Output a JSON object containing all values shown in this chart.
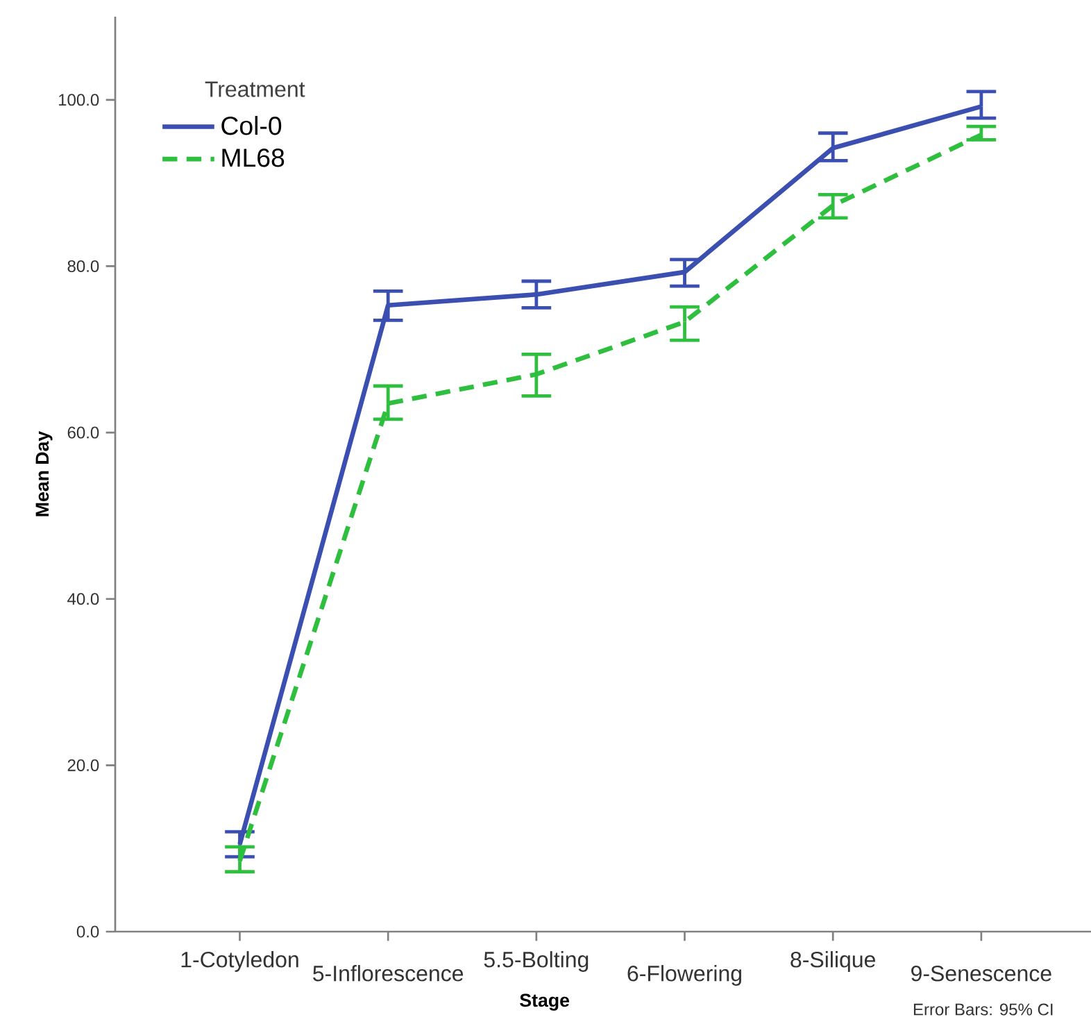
{
  "chart_data": {
    "type": "line",
    "xlabel": "Stage",
    "ylabel": "Mean Day",
    "legend_title": "Treatment",
    "categories": [
      "1-Cotyledon",
      "5-Inflorescence",
      "5.5-Bolting",
      "6-Flowering",
      "8-Silique",
      "9-Senescence"
    ],
    "series": [
      {
        "name": "Col-0",
        "color": "#3b4fb0",
        "line_style": "solid",
        "values": [
          10.5,
          75.3,
          76.6,
          79.3,
          94.2,
          99.2
        ],
        "errors": [
          [
            9.0,
            12.0
          ],
          [
            73.5,
            77.0
          ],
          [
            75.0,
            78.2
          ],
          [
            77.6,
            80.8
          ],
          [
            92.7,
            96.0
          ],
          [
            97.8,
            101.0
          ]
        ]
      },
      {
        "name": "ML68",
        "color": "#2fbf3f",
        "line_style": "dashed",
        "values": [
          8.5,
          63.5,
          67.0,
          73.3,
          87.3,
          95.8
        ],
        "errors": [
          [
            7.2,
            10.2
          ],
          [
            61.6,
            65.6
          ],
          [
            64.4,
            69.4
          ],
          [
            71.1,
            75.1
          ],
          [
            85.8,
            88.6
          ],
          [
            95.2,
            96.8
          ]
        ]
      }
    ],
    "ylim": [
      0,
      110
    ],
    "yticks": [
      {
        "value": 0,
        "label": "0.0"
      },
      {
        "value": 20,
        "label": "20.0"
      },
      {
        "value": 40,
        "label": "40.0"
      },
      {
        "value": 60,
        "label": "60.0"
      },
      {
        "value": 80,
        "label": "80.0"
      },
      {
        "value": 100,
        "label": "100.0"
      }
    ],
    "grid": false,
    "legend": "top left",
    "marker": "none",
    "annotations": [
      "Error Bars: 95% CI"
    ]
  }
}
